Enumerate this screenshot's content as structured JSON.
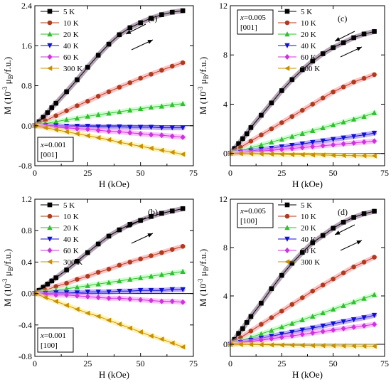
{
  "chart_data": [
    {
      "type": "line",
      "panel": "(a)",
      "sample": [
        "x=0.001",
        "[001]"
      ],
      "sample_position": "bottom-left",
      "legend_placement": "top-left",
      "xlabel": "H  (kOe)",
      "ylabel": "M  (10^-3 μB/f.u.)",
      "xlim": [
        0,
        75
      ],
      "ylim": [
        -0.8,
        2.4
      ],
      "xticks": [
        0,
        25,
        50,
        75
      ],
      "yticks": [
        -0.8,
        0.0,
        0.8,
        1.6,
        2.4
      ],
      "ytick_labels": [
        "-0.8",
        "0.0",
        "0.8",
        "1.6",
        "2.4"
      ],
      "grid": false,
      "hysteresis_arrows": true,
      "series": [
        {
          "name": "5 K",
          "marker": "square",
          "color": "#000000",
          "x": [
            0,
            2,
            4,
            6,
            8,
            10,
            15,
            20,
            25,
            30,
            35,
            40,
            45,
            50,
            55,
            60,
            65,
            70
          ],
          "y": [
            0,
            0.08,
            0.17,
            0.26,
            0.36,
            0.45,
            0.68,
            0.92,
            1.17,
            1.41,
            1.63,
            1.82,
            1.96,
            2.06,
            2.15,
            2.22,
            2.27,
            2.3
          ]
        },
        {
          "name": "10 K",
          "marker": "circle",
          "color": "#b03a1e",
          "x": [
            0,
            5,
            10,
            15,
            20,
            25,
            30,
            35,
            40,
            45,
            50,
            55,
            60,
            65,
            70
          ],
          "y": [
            0,
            0.1,
            0.2,
            0.3,
            0.4,
            0.49,
            0.59,
            0.68,
            0.77,
            0.86,
            0.95,
            1.03,
            1.11,
            1.19,
            1.26
          ]
        },
        {
          "name": "20 K",
          "marker": "triangle-up",
          "color": "#2fbf2f",
          "x": [
            0,
            5,
            10,
            15,
            20,
            25,
            30,
            35,
            40,
            45,
            50,
            55,
            60,
            65,
            70
          ],
          "y": [
            0,
            0.04,
            0.08,
            0.12,
            0.15,
            0.19,
            0.22,
            0.25,
            0.28,
            0.31,
            0.34,
            0.37,
            0.39,
            0.42,
            0.44
          ]
        },
        {
          "name": "40 K",
          "marker": "triangle-down",
          "color": "#1010d0",
          "x": [
            0,
            5,
            10,
            15,
            20,
            25,
            30,
            35,
            40,
            45,
            50,
            55,
            60,
            65,
            70
          ],
          "y": [
            0,
            0.0,
            0.0,
            -0.01,
            -0.01,
            -0.01,
            -0.02,
            -0.02,
            -0.02,
            -0.03,
            -0.03,
            -0.03,
            -0.04,
            -0.04,
            -0.04
          ]
        },
        {
          "name": "60 K",
          "marker": "diamond",
          "color": "#cc33dd",
          "x": [
            0,
            5,
            10,
            15,
            20,
            25,
            30,
            35,
            40,
            45,
            50,
            55,
            60,
            65,
            70
          ],
          "y": [
            0,
            -0.01,
            -0.03,
            -0.04,
            -0.06,
            -0.07,
            -0.09,
            -0.11,
            -0.12,
            -0.14,
            -0.16,
            -0.18,
            -0.19,
            -0.21,
            -0.23
          ]
        },
        {
          "name": "300 K",
          "marker": "triangle-left",
          "color": "#c89000",
          "x": [
            0,
            5,
            10,
            15,
            20,
            25,
            30,
            35,
            40,
            45,
            50,
            55,
            60,
            65,
            70
          ],
          "y": [
            0,
            -0.04,
            -0.08,
            -0.12,
            -0.16,
            -0.2,
            -0.24,
            -0.28,
            -0.33,
            -0.37,
            -0.41,
            -0.45,
            -0.49,
            -0.53,
            -0.57
          ]
        }
      ]
    },
    {
      "type": "line",
      "panel": "(c)",
      "sample": [
        "x=0.005",
        "[001]"
      ],
      "sample_position": "top-left",
      "legend_placement": "top-right",
      "xlabel": "H  (kOe)",
      "ylabel": "M  (10^-3 μB/f.u.)",
      "xlim": [
        0,
        75
      ],
      "ylim": [
        -1,
        12
      ],
      "xticks": [
        0,
        25,
        50,
        75
      ],
      "yticks": [
        0,
        4,
        8,
        12
      ],
      "ytick_labels": [
        "0",
        "4",
        "8",
        "12"
      ],
      "grid": false,
      "hysteresis_arrows": true,
      "series": [
        {
          "name": "5 K",
          "marker": "square",
          "color": "#000000",
          "x": [
            0,
            2,
            4,
            6,
            8,
            10,
            15,
            20,
            25,
            30,
            35,
            40,
            45,
            50,
            55,
            60,
            65,
            70
          ],
          "y": [
            0,
            0.4,
            0.8,
            1.2,
            1.6,
            2.1,
            3.1,
            4.1,
            5.1,
            6.0,
            6.8,
            7.5,
            8.1,
            8.6,
            9.0,
            9.4,
            9.7,
            9.9
          ]
        },
        {
          "name": "10 K",
          "marker": "circle",
          "color": "#b03a1e",
          "x": [
            0,
            5,
            10,
            15,
            20,
            25,
            30,
            35,
            40,
            45,
            50,
            55,
            60,
            65,
            70
          ],
          "y": [
            0,
            0.5,
            1.0,
            1.5,
            2.0,
            2.5,
            3.0,
            3.5,
            4.0,
            4.5,
            5.0,
            5.4,
            5.8,
            6.1,
            6.4
          ]
        },
        {
          "name": "20 K",
          "marker": "triangle-up",
          "color": "#2fbf2f",
          "x": [
            0,
            5,
            10,
            15,
            20,
            25,
            30,
            35,
            40,
            45,
            50,
            55,
            60,
            65,
            70
          ],
          "y": [
            0,
            0.22,
            0.45,
            0.68,
            0.92,
            1.15,
            1.38,
            1.62,
            1.85,
            2.08,
            2.32,
            2.55,
            2.78,
            3.0,
            3.3
          ]
        },
        {
          "name": "40 K",
          "marker": "triangle-down",
          "color": "#1010d0",
          "x": [
            0,
            5,
            10,
            15,
            20,
            25,
            30,
            35,
            40,
            45,
            50,
            55,
            60,
            65,
            70
          ],
          "y": [
            0,
            0.1,
            0.2,
            0.32,
            0.43,
            0.54,
            0.66,
            0.78,
            0.9,
            1.02,
            1.14,
            1.26,
            1.38,
            1.5,
            1.65
          ]
        },
        {
          "name": "60 K",
          "marker": "diamond",
          "color": "#cc33dd",
          "x": [
            0,
            5,
            10,
            15,
            20,
            25,
            30,
            35,
            40,
            45,
            50,
            55,
            60,
            65,
            70
          ],
          "y": [
            0,
            0.06,
            0.12,
            0.19,
            0.26,
            0.33,
            0.4,
            0.48,
            0.55,
            0.63,
            0.7,
            0.78,
            0.85,
            0.93,
            1.0
          ]
        },
        {
          "name": "300 K",
          "marker": "triangle-left",
          "color": "#c89000",
          "x": [
            0,
            5,
            10,
            15,
            20,
            25,
            30,
            35,
            40,
            45,
            50,
            55,
            60,
            65,
            70
          ],
          "y": [
            0,
            -0.01,
            -0.03,
            -0.04,
            -0.06,
            -0.07,
            -0.09,
            -0.1,
            -0.12,
            -0.13,
            -0.15,
            -0.16,
            -0.18,
            -0.19,
            -0.2
          ]
        }
      ]
    },
    {
      "type": "line",
      "panel": "(b)",
      "sample": [
        "x=0.001",
        "[100]"
      ],
      "sample_position": "bottom-left",
      "legend_placement": "top-left",
      "xlabel": "H  (kOe)",
      "ylabel": "M  (10^-3 μB/f.u.)",
      "xlim": [
        0,
        75
      ],
      "ylim": [
        -0.8,
        1.2
      ],
      "xticks": [
        0,
        25,
        50,
        75
      ],
      "yticks": [
        -0.8,
        -0.4,
        0.0,
        0.4,
        0.8,
        1.2
      ],
      "ytick_labels": [
        "-0.8",
        "-0.4",
        "0.0",
        "0.4",
        "0.8",
        "1.2"
      ],
      "grid": false,
      "hysteresis_arrows": true,
      "series": [
        {
          "name": "5 K",
          "marker": "square",
          "color": "#000000",
          "x": [
            0,
            2,
            4,
            6,
            8,
            10,
            15,
            20,
            25,
            30,
            35,
            40,
            45,
            50,
            55,
            60,
            65,
            70
          ],
          "y": [
            0,
            0.04,
            0.08,
            0.12,
            0.16,
            0.2,
            0.3,
            0.41,
            0.52,
            0.63,
            0.73,
            0.81,
            0.88,
            0.93,
            0.98,
            1.02,
            1.05,
            1.08
          ]
        },
        {
          "name": "10 K",
          "marker": "circle",
          "color": "#b03a1e",
          "x": [
            0,
            5,
            10,
            15,
            20,
            25,
            30,
            35,
            40,
            45,
            50,
            55,
            60,
            65,
            70
          ],
          "y": [
            0,
            0.04,
            0.09,
            0.13,
            0.18,
            0.22,
            0.27,
            0.31,
            0.36,
            0.4,
            0.44,
            0.48,
            0.52,
            0.56,
            0.6
          ]
        },
        {
          "name": "20 K",
          "marker": "triangle-up",
          "color": "#2fbf2f",
          "x": [
            0,
            5,
            10,
            15,
            20,
            25,
            30,
            35,
            40,
            45,
            50,
            55,
            60,
            65,
            70
          ],
          "y": [
            0,
            0.02,
            0.04,
            0.06,
            0.08,
            0.1,
            0.12,
            0.14,
            0.16,
            0.18,
            0.2,
            0.22,
            0.24,
            0.26,
            0.28
          ]
        },
        {
          "name": "40 K",
          "marker": "triangle-down",
          "color": "#1010d0",
          "x": [
            0,
            5,
            10,
            15,
            20,
            25,
            30,
            35,
            40,
            45,
            50,
            55,
            60,
            65,
            70
          ],
          "y": [
            0,
            0.0,
            0.01,
            0.01,
            0.01,
            0.02,
            0.02,
            0.02,
            0.03,
            0.03,
            0.04,
            0.04,
            0.04,
            0.05,
            0.05
          ]
        },
        {
          "name": "60 K",
          "marker": "diamond",
          "color": "#cc33dd",
          "x": [
            0,
            5,
            10,
            15,
            20,
            25,
            30,
            35,
            40,
            45,
            50,
            55,
            60,
            65,
            70
          ],
          "y": [
            0,
            -0.01,
            -0.02,
            -0.02,
            -0.03,
            -0.04,
            -0.05,
            -0.06,
            -0.06,
            -0.07,
            -0.08,
            -0.09,
            -0.1,
            -0.1,
            -0.11
          ]
        },
        {
          "name": "300 K",
          "marker": "triangle-left",
          "color": "#c89000",
          "x": [
            0,
            5,
            10,
            15,
            20,
            25,
            30,
            35,
            40,
            45,
            50,
            55,
            60,
            65,
            70
          ],
          "y": [
            0,
            -0.05,
            -0.1,
            -0.15,
            -0.2,
            -0.25,
            -0.29,
            -0.34,
            -0.39,
            -0.44,
            -0.49,
            -0.54,
            -0.58,
            -0.63,
            -0.68
          ]
        }
      ]
    },
    {
      "type": "line",
      "panel": "(d)",
      "sample": [
        "x=0.005",
        "[100]"
      ],
      "sample_position": "top-left",
      "legend_placement": "top-right",
      "xlabel": "H  (kOe)",
      "ylabel": "M  (10^-3 μB/f.u.)",
      "xlim": [
        0,
        75
      ],
      "ylim": [
        -1,
        12
      ],
      "xticks": [
        0,
        25,
        50,
        75
      ],
      "yticks": [
        0,
        4,
        8,
        12
      ],
      "ytick_labels": [
        "0",
        "4",
        "8",
        "12"
      ],
      "grid": false,
      "hysteresis_arrows": true,
      "series": [
        {
          "name": "5 K",
          "marker": "square",
          "color": "#000000",
          "x": [
            0,
            2,
            4,
            6,
            8,
            10,
            15,
            20,
            25,
            30,
            35,
            40,
            45,
            50,
            55,
            60,
            65,
            70
          ],
          "y": [
            0,
            0.4,
            0.9,
            1.3,
            1.8,
            2.3,
            3.4,
            4.6,
            5.7,
            6.7,
            7.6,
            8.4,
            9.0,
            9.6,
            10.1,
            10.5,
            10.8,
            11.0
          ]
        },
        {
          "name": "10 K",
          "marker": "circle",
          "color": "#b03a1e",
          "x": [
            0,
            5,
            10,
            15,
            20,
            25,
            30,
            35,
            40,
            45,
            50,
            55,
            60,
            65,
            70
          ],
          "y": [
            0,
            0.55,
            1.1,
            1.65,
            2.2,
            2.75,
            3.3,
            3.85,
            4.4,
            4.9,
            5.4,
            5.9,
            6.4,
            6.8,
            7.2
          ]
        },
        {
          "name": "20 K",
          "marker": "triangle-up",
          "color": "#2fbf2f",
          "x": [
            0,
            5,
            10,
            15,
            20,
            25,
            30,
            35,
            40,
            45,
            50,
            55,
            60,
            65,
            70
          ],
          "y": [
            0,
            0.28,
            0.57,
            0.86,
            1.15,
            1.44,
            1.73,
            2.02,
            2.31,
            2.6,
            2.9,
            3.2,
            3.5,
            3.8,
            4.1
          ]
        },
        {
          "name": "40 K",
          "marker": "triangle-down",
          "color": "#1010d0",
          "x": [
            0,
            5,
            10,
            15,
            20,
            25,
            30,
            35,
            40,
            45,
            50,
            55,
            60,
            65,
            70
          ],
          "y": [
            0,
            0.16,
            0.33,
            0.5,
            0.67,
            0.84,
            1.0,
            1.18,
            1.35,
            1.52,
            1.7,
            1.87,
            2.04,
            2.2,
            2.4
          ]
        },
        {
          "name": "60 K",
          "marker": "diamond",
          "color": "#cc33dd",
          "x": [
            0,
            5,
            10,
            15,
            20,
            25,
            30,
            35,
            40,
            45,
            50,
            55,
            60,
            65,
            70
          ],
          "y": [
            0,
            0.11,
            0.23,
            0.35,
            0.46,
            0.58,
            0.7,
            0.82,
            0.94,
            1.06,
            1.18,
            1.3,
            1.42,
            1.53,
            1.65
          ]
        },
        {
          "name": "300 K",
          "marker": "triangle-left",
          "color": "#c89000",
          "x": [
            0,
            5,
            10,
            15,
            20,
            25,
            30,
            35,
            40,
            45,
            50,
            55,
            60,
            65,
            70
          ],
          "y": [
            0,
            -0.01,
            -0.02,
            -0.03,
            -0.05,
            -0.06,
            -0.07,
            -0.08,
            -0.1,
            -0.11,
            -0.12,
            -0.13,
            -0.14,
            -0.15,
            -0.16
          ]
        }
      ]
    }
  ]
}
